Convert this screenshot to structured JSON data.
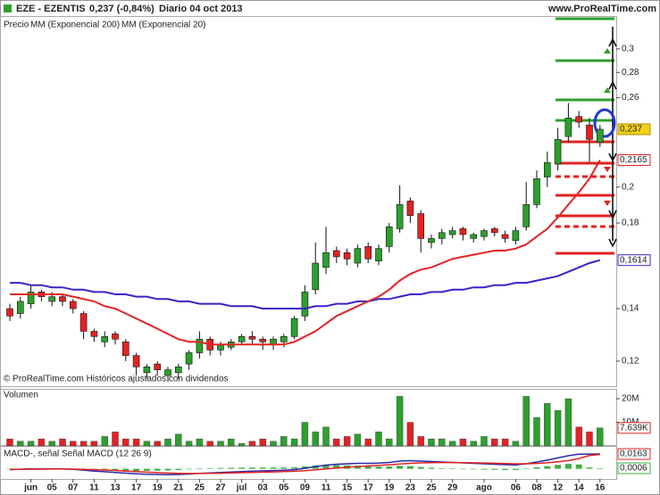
{
  "header": {
    "symbol": "EZE - EZENTIS",
    "quote": "0,237 (-0,84%)",
    "period": "Diario  04 oct 2013",
    "site": "www.ProRealTime.com"
  },
  "chart_data": [
    {
      "type": "candlestick",
      "legend_prefix": "Precio",
      "note": "© ProRealTime.com Históricos ajustados con dividendos",
      "categories": [
        null,
        null,
        "jun",
        null,
        "05",
        null,
        "07",
        null,
        "11",
        null,
        "13",
        null,
        "17",
        null,
        "19",
        null,
        "21",
        null,
        "25",
        null,
        "27",
        null,
        "jul",
        null,
        "03",
        null,
        "05",
        null,
        "09",
        null,
        "11",
        null,
        "15",
        null,
        "17",
        null,
        "19",
        null,
        "23",
        null,
        "25",
        null,
        "29",
        null,
        null,
        "ago",
        null,
        null,
        "06",
        null,
        "08",
        null,
        "12",
        null,
        "14",
        null,
        "16"
      ],
      "open": [
        0.14,
        0.138,
        0.142,
        0.147,
        0.143,
        0.145,
        0.143,
        0.138,
        0.131,
        0.127,
        0.13,
        0.127,
        0.122,
        0.116,
        0.119,
        0.115,
        0.116,
        0.119,
        0.123,
        0.128,
        0.124,
        0.125,
        0.127,
        0.129,
        0.128,
        0.126,
        0.127,
        0.129,
        0.137,
        0.148,
        0.158,
        0.166,
        0.165,
        0.16,
        0.168,
        0.161,
        0.168,
        0.177,
        0.192,
        0.185,
        0.17,
        0.172,
        0.174,
        0.177,
        0.172,
        0.173,
        0.177,
        0.174,
        0.171,
        0.178,
        0.19,
        0.206,
        0.214,
        0.232,
        0.246,
        0.24,
        0.228
      ],
      "high": [
        0.142,
        0.145,
        0.15,
        0.148,
        0.147,
        0.146,
        0.144,
        0.139,
        0.132,
        0.131,
        0.131,
        0.128,
        0.123,
        0.119,
        0.12,
        0.118,
        0.119,
        0.124,
        0.131,
        0.129,
        0.127,
        0.128,
        0.13,
        0.131,
        0.129,
        0.129,
        0.13,
        0.137,
        0.15,
        0.17,
        0.178,
        0.168,
        0.167,
        0.169,
        0.17,
        0.169,
        0.18,
        0.201,
        0.194,
        0.187,
        0.174,
        0.177,
        0.178,
        0.178,
        0.175,
        0.177,
        0.178,
        0.176,
        0.178,
        0.203,
        0.21,
        0.222,
        0.238,
        0.256,
        0.25,
        0.245,
        0.24
      ],
      "low": [
        0.135,
        0.136,
        0.14,
        0.143,
        0.141,
        0.141,
        0.138,
        0.128,
        0.127,
        0.125,
        0.126,
        0.12,
        0.115,
        0.114,
        0.115,
        0.113,
        0.114,
        0.117,
        0.121,
        0.122,
        0.122,
        0.124,
        0.126,
        0.126,
        0.124,
        0.124,
        0.125,
        0.128,
        0.135,
        0.146,
        0.155,
        0.16,
        0.159,
        0.158,
        0.16,
        0.159,
        0.165,
        0.175,
        0.18,
        0.165,
        0.167,
        0.169,
        0.172,
        0.171,
        0.17,
        0.171,
        0.173,
        0.17,
        0.169,
        0.176,
        0.188,
        0.2,
        0.21,
        0.228,
        0.238,
        0.215,
        0.225
      ],
      "close": [
        0.137,
        0.143,
        0.147,
        0.145,
        0.145,
        0.143,
        0.14,
        0.131,
        0.129,
        0.129,
        0.128,
        0.122,
        0.118,
        0.118,
        0.117,
        0.117,
        0.118,
        0.123,
        0.128,
        0.124,
        0.126,
        0.127,
        0.129,
        0.128,
        0.127,
        0.128,
        0.129,
        0.136,
        0.147,
        0.16,
        0.165,
        0.163,
        0.162,
        0.167,
        0.162,
        0.167,
        0.178,
        0.19,
        0.184,
        0.172,
        0.172,
        0.175,
        0.176,
        0.174,
        0.174,
        0.176,
        0.175,
        0.172,
        0.176,
        0.19,
        0.205,
        0.215,
        0.23,
        0.245,
        0.242,
        0.23,
        0.237
      ],
      "close_last_label": "0,237",
      "up_color": "#2ca02c",
      "down_color": "#e32222",
      "last_label_color": "#f2d21b",
      "series": [
        {
          "name": "MM (Exponencial 200)",
          "color": "#3b22c8",
          "last_value_label": "0,1614",
          "values": [
            0.151,
            0.151,
            0.15,
            0.15,
            0.149,
            0.149,
            0.148,
            0.148,
            0.147,
            0.147,
            0.146,
            0.146,
            0.145,
            0.145,
            0.144,
            0.144,
            0.143,
            0.143,
            0.142,
            0.142,
            0.142,
            0.141,
            0.141,
            0.141,
            0.14,
            0.14,
            0.14,
            0.14,
            0.14,
            0.141,
            0.141,
            0.142,
            0.142,
            0.143,
            0.143,
            0.144,
            0.144,
            0.145,
            0.146,
            0.146,
            0.147,
            0.147,
            0.148,
            0.148,
            0.149,
            0.149,
            0.15,
            0.15,
            0.151,
            0.151,
            0.152,
            0.153,
            0.154,
            0.156,
            0.158,
            0.16,
            0.1614
          ]
        },
        {
          "name": "MM (Exponencial 20)",
          "color": "#e32222",
          "last_value_label": "0,2165",
          "values": [
            0.146,
            0.146,
            0.146,
            0.146,
            0.146,
            0.146,
            0.145,
            0.144,
            0.143,
            0.141,
            0.14,
            0.138,
            0.136,
            0.134,
            0.132,
            0.13,
            0.128,
            0.127,
            0.127,
            0.126,
            0.126,
            0.126,
            0.126,
            0.126,
            0.126,
            0.126,
            0.126,
            0.127,
            0.129,
            0.131,
            0.134,
            0.137,
            0.139,
            0.141,
            0.143,
            0.145,
            0.148,
            0.152,
            0.155,
            0.157,
            0.158,
            0.16,
            0.162,
            0.163,
            0.164,
            0.165,
            0.166,
            0.166,
            0.167,
            0.169,
            0.173,
            0.177,
            0.183,
            0.19,
            0.197,
            0.205,
            0.2165
          ]
        }
      ],
      "log_scale": true,
      "ylim": [
        0.1115,
        0.3304
      ],
      "yticks": [
        {
          "value": 0.12,
          "label": "0,12"
        },
        {
          "value": 0.14,
          "label": "0,14"
        },
        {
          "value": 0.18,
          "label": "0,18"
        },
        {
          "value": 0.2,
          "label": "0,2"
        },
        {
          "value": 0.26,
          "label": "0,26"
        },
        {
          "value": 0.28,
          "label": "0,28"
        },
        {
          "value": 0.3,
          "label": "0,3"
        }
      ]
    },
    {
      "type": "bar",
      "title": "Volumen",
      "values": [
        3,
        2,
        2,
        3,
        2,
        3,
        2,
        2,
        2,
        4,
        6,
        3,
        3,
        2,
        2,
        3,
        5,
        2,
        3,
        2,
        2,
        3,
        1,
        2,
        3,
        2,
        4,
        3,
        10,
        6,
        8,
        3,
        4,
        5,
        3,
        6,
        3,
        21,
        10,
        4,
        3,
        3,
        2,
        3,
        2,
        4,
        3,
        3,
        2,
        21,
        12,
        18,
        15,
        20,
        8,
        6,
        7.639
      ],
      "last_value_label": "7.639K",
      "ylim": [
        0,
        23.8
      ],
      "yticks": [
        {
          "value": 10,
          "label": "10M"
        },
        {
          "value": 20,
          "label": "20M"
        }
      ]
    },
    {
      "type": "line",
      "title": "MACD-, señal Señal MACD (12 26 9)",
      "series": [
        {
          "color": "#2a2aa8",
          "last_value_label": "0,0163",
          "values": [
            -0.001,
            -0.0005,
            0,
            0,
            0,
            -0.0002,
            -0.0006,
            -0.0015,
            -0.0025,
            -0.0032,
            -0.004,
            -0.0048,
            -0.0055,
            -0.006,
            -0.0063,
            -0.0065,
            -0.0063,
            -0.0058,
            -0.005,
            -0.0045,
            -0.004,
            -0.0035,
            -0.003,
            -0.0026,
            -0.0023,
            -0.002,
            -0.0017,
            -0.001,
            0.0005,
            0.0025,
            0.004,
            0.005,
            0.0055,
            0.006,
            0.006,
            0.0062,
            0.007,
            0.0085,
            0.009,
            0.0085,
            0.008,
            0.0075,
            0.007,
            0.0065,
            0.006,
            0.0055,
            0.005,
            0.0045,
            0.0042,
            0.0055,
            0.0075,
            0.0095,
            0.012,
            0.0145,
            0.016,
            0.0162,
            0.0163
          ]
        },
        {
          "color": "#e32222",
          "values": [
            -0.0005,
            -0.0006,
            -0.0005,
            -0.0004,
            -0.0003,
            -0.0003,
            -0.0004,
            -0.0006,
            -0.001,
            -0.0014,
            -0.0019,
            -0.0025,
            -0.0031,
            -0.0037,
            -0.0042,
            -0.0047,
            -0.005,
            -0.0052,
            -0.0052,
            -0.0051,
            -0.0049,
            -0.0046,
            -0.0043,
            -0.004,
            -0.0037,
            -0.0034,
            -0.0031,
            -0.0027,
            -0.0021,
            -0.0012,
            -0.0002,
            0.0008,
            0.0017,
            0.0025,
            0.0032,
            0.0038,
            0.0044,
            0.0052,
            0.006,
            0.0065,
            0.0068,
            0.0069,
            0.0069,
            0.0068,
            0.0066,
            0.0064,
            0.0061,
            0.0058,
            0.0055,
            0.0055,
            0.0059,
            0.0066,
            0.0077,
            0.0091,
            0.0113,
            0.0148,
            0.0157
          ]
        }
      ],
      "histogram_color": "#3cb043",
      "histogram_last_label": "0,0006",
      "histogram": [
        -0.0005,
        0.0001,
        0.0005,
        0.0004,
        0.0003,
        0.0001,
        -0.0002,
        -0.0009,
        -0.0015,
        -0.0018,
        -0.0021,
        -0.0023,
        -0.0024,
        -0.0023,
        -0.0021,
        -0.0018,
        -0.0013,
        -0.0006,
        0.0002,
        0.0006,
        0.0009,
        0.0011,
        0.0013,
        0.0014,
        0.0014,
        0.0014,
        0.0014,
        0.0017,
        0.0026,
        0.0037,
        0.0042,
        0.0042,
        0.0038,
        0.0035,
        0.0028,
        0.0024,
        0.0026,
        0.0033,
        0.003,
        0.002,
        0.0012,
        0.0006,
        0.0001,
        -0.0003,
        -0.0006,
        -0.0009,
        -0.0011,
        -0.0013,
        -0.0013,
        0,
        0.0016,
        0.0029,
        0.0043,
        0.0054,
        0.0047,
        0.0014,
        0.0006
      ],
      "ylim": [
        -0.0112,
        0.0242
      ]
    }
  ]
}
